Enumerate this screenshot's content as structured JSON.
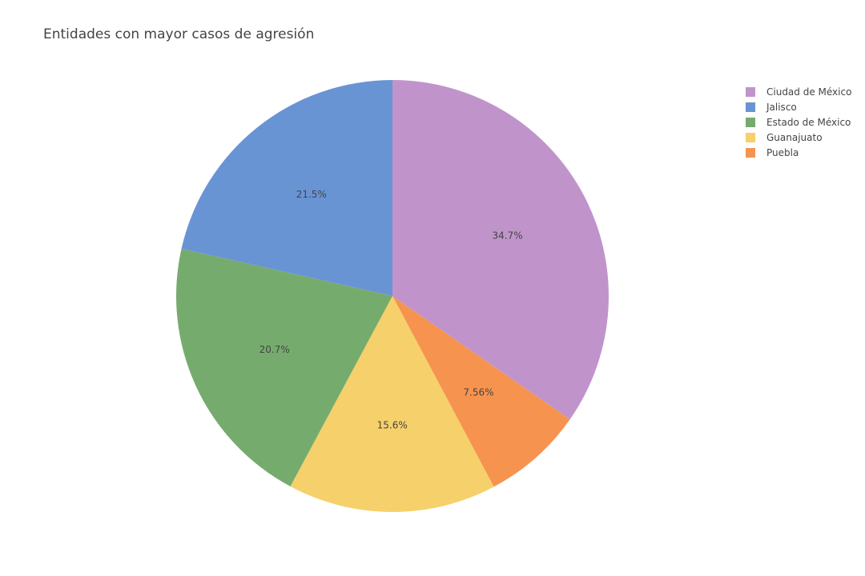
{
  "chart_data": {
    "type": "pie",
    "title": "Entidades con mayor casos de agresión",
    "legend_position": "top-right",
    "direction": "clockwise",
    "rotation_start": "12 o'clock",
    "slices": [
      {
        "label": "Ciudad de México",
        "percent": 34.7,
        "display": "34.7%",
        "color": "#c094cb"
      },
      {
        "label": "Puebla",
        "percent": 7.56,
        "display": "7.56%",
        "color": "#f6944f"
      },
      {
        "label": "Guanajuato",
        "percent": 15.6,
        "display": "15.6%",
        "color": "#f6d06a"
      },
      {
        "label": "Estado de México",
        "percent": 20.7,
        "display": "20.7%",
        "color": "#76ab6e"
      },
      {
        "label": "Jalisco",
        "percent": 21.5,
        "display": "21.5%",
        "color": "#6994d4"
      }
    ],
    "legend": [
      {
        "label": "Ciudad de México",
        "color": "#c094cb"
      },
      {
        "label": "Jalisco",
        "color": "#6994d4"
      },
      {
        "label": "Estado de México",
        "color": "#76ab6e"
      },
      {
        "label": "Guanajuato",
        "color": "#f6d06a"
      },
      {
        "label": "Puebla",
        "color": "#f6944f"
      }
    ]
  }
}
